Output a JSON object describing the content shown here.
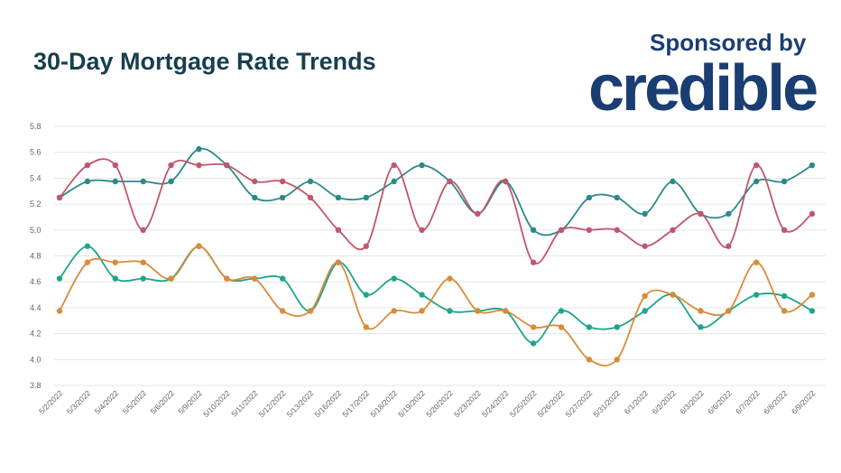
{
  "chart_data": {
    "type": "line",
    "title": "30-Day Mortgage Rate Trends",
    "sponsor_text": "Sponsored by",
    "logo_text": "credible",
    "xlabel": "",
    "ylabel": "",
    "ylim": [
      3.8,
      5.8
    ],
    "yticks": [
      "3.8",
      "4.0",
      "4.2",
      "4.4",
      "4.6",
      "4.8",
      "5.0",
      "5.2",
      "5.4",
      "5.6",
      "5.8"
    ],
    "grid": true,
    "legend": "none",
    "categories": [
      "5/2/2022",
      "5/3/2022",
      "5/4/2022",
      "5/5/2022",
      "5/6/2022",
      "5/9/2022",
      "5/10/2022",
      "5/11/2022",
      "5/12/2022",
      "5/13/2022",
      "5/16/2022",
      "5/17/2022",
      "5/18/2022",
      "5/19/2022",
      "5/20/2022",
      "5/23/2022",
      "5/24/2022",
      "5/25/2022",
      "5/26/2022",
      "5/27/2022",
      "5/31/2022",
      "6/1/2022",
      "6/2/2022",
      "6/3/2022",
      "6/6/2022",
      "6/7/2022",
      "6/8/2022",
      "6/9/2022"
    ],
    "series": [
      {
        "color": "#2a8a8a",
        "values": [
          5.25,
          5.375,
          5.375,
          5.375,
          5.375,
          5.625,
          5.5,
          5.25,
          5.25,
          5.375,
          5.25,
          5.25,
          5.375,
          5.5,
          5.375,
          5.125,
          5.375,
          5.0,
          5.0,
          5.25,
          5.25,
          5.125,
          5.375,
          5.125,
          5.125,
          5.375,
          5.375,
          5.5
        ]
      },
      {
        "color": "#c2566b",
        "values": [
          5.25,
          5.5,
          5.5,
          5.0,
          5.5,
          5.5,
          5.5,
          5.375,
          5.375,
          5.25,
          5.0,
          4.875,
          5.5,
          5.0,
          5.375,
          5.125,
          5.375,
          4.75,
          5.0,
          5.0,
          5.0,
          4.875,
          5.0,
          5.125,
          4.875,
          5.5,
          5.0,
          5.125
        ]
      },
      {
        "color": "#1fa58a",
        "values": [
          4.625,
          4.875,
          4.625,
          4.625,
          4.625,
          4.875,
          4.625,
          4.625,
          4.625,
          4.375,
          4.75,
          4.5,
          4.625,
          4.5,
          4.375,
          4.375,
          4.375,
          4.125,
          4.375,
          4.25,
          4.25,
          4.375,
          4.5,
          4.25,
          4.375,
          4.5,
          4.49,
          4.375
        ]
      },
      {
        "color": "#d98b3a",
        "values": [
          4.375,
          4.75,
          4.75,
          4.75,
          4.625,
          4.875,
          4.625,
          4.625,
          4.375,
          4.375,
          4.75,
          4.25,
          4.375,
          4.375,
          4.625,
          4.375,
          4.375,
          4.25,
          4.25,
          4.0,
          4.0,
          4.49,
          4.5,
          4.375,
          4.375,
          4.75,
          4.375,
          4.5
        ]
      }
    ]
  }
}
